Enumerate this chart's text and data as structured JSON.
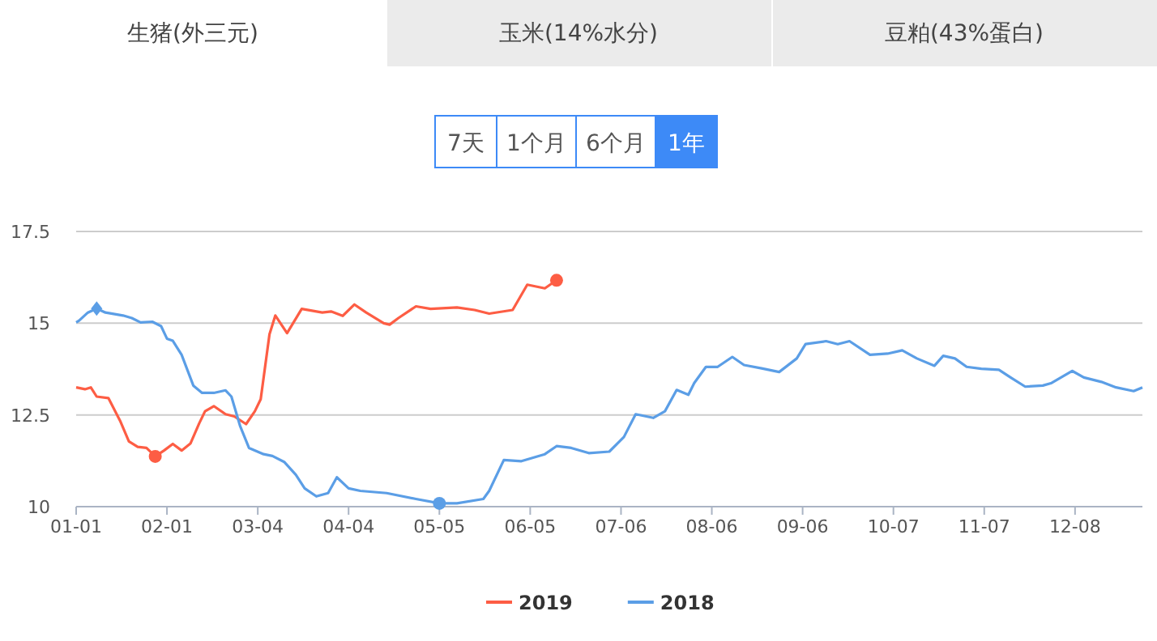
{
  "chart_data": {
    "type": "line",
    "xlim": [
      "--01-01",
      "--12-31"
    ],
    "ylim": [
      10,
      17.5
    ],
    "yticks": [
      10,
      12.5,
      15,
      17.5
    ],
    "xticks": [
      {
        "value": "--01-01",
        "label": "01-01"
      },
      {
        "value": "--02-01",
        "label": "02-01"
      },
      {
        "value": "--03-04",
        "label": "03-04"
      },
      {
        "value": "--04-04",
        "label": "04-04"
      },
      {
        "value": "--05-05",
        "label": "05-05"
      },
      {
        "value": "--06-05",
        "label": "06-05"
      },
      {
        "value": "--07-06",
        "label": "07-06"
      },
      {
        "value": "--08-06",
        "label": "08-06"
      },
      {
        "value": "--09-06",
        "label": "09-06"
      },
      {
        "value": "--10-07",
        "label": "10-07"
      },
      {
        "value": "--11-07",
        "label": "11-07"
      },
      {
        "value": "--12-08",
        "label": "12-08"
      }
    ],
    "grid": "y",
    "legend": "bottom",
    "annotations": [
      "生猪(外三元)",
      "玉米(14%水分)",
      "豆粕(43%蛋白)",
      "7天",
      "1个月",
      "6个月",
      "1年"
    ],
    "series": [
      {
        "name": "2019",
        "color": "#fd5d44",
        "x": [
          "--01-01",
          "--01-04",
          "--01-06",
          "--01-08",
          "--01-12",
          "--01-16",
          "--01-19",
          "--01-22",
          "--01-25",
          "--01-28",
          "--01-31",
          "--02-03",
          "--02-06",
          "--02-09",
          "--02-12",
          "--02-14",
          "--02-17",
          "--02-21",
          "--02-24",
          "--02-28",
          "--03-03",
          "--03-05",
          "--03-08",
          "--03-10",
          "--03-14",
          "--03-19",
          "--03-26",
          "--03-29",
          "--04-02",
          "--04-06",
          "--04-10",
          "--04-16",
          "--04-18",
          "--04-21",
          "--04-27",
          "--05-02",
          "--05-11",
          "--05-17",
          "--05-22",
          "--05-30",
          "--06-04",
          "--06-10",
          "--06-14"
        ],
        "values": [
          13.25,
          13.2,
          13.25,
          13.0,
          12.96,
          12.34,
          11.78,
          11.63,
          11.6,
          11.37,
          11.53,
          11.71,
          11.53,
          11.72,
          12.27,
          12.6,
          12.74,
          12.52,
          12.46,
          12.25,
          12.6,
          12.93,
          14.7,
          15.21,
          14.73,
          15.39,
          15.29,
          15.32,
          15.2,
          15.51,
          15.29,
          15.0,
          14.96,
          15.14,
          15.46,
          15.39,
          15.43,
          15.36,
          15.26,
          15.36,
          16.05,
          15.95,
          16.17
        ]
      },
      {
        "name": "2018",
        "color": "#5b9ee6",
        "x": [
          "--01-01",
          "--01-02",
          "--01-05",
          "--01-08",
          "--01-11",
          "--01-17",
          "--01-20",
          "--01-23",
          "--01-27",
          "--01-30",
          "--02-01",
          "--02-03",
          "--02-06",
          "--02-10",
          "--02-13",
          "--02-17",
          "--02-21",
          "--02-23",
          "--02-26",
          "--03-01",
          "--03-06",
          "--03-09",
          "--03-13",
          "--03-17",
          "--03-20",
          "--03-24",
          "--03-28",
          "--03-31",
          "--04-04",
          "--04-08",
          "--04-17",
          "--04-27",
          "--05-05",
          "--05-11",
          "--05-20",
          "--05-22",
          "--05-27",
          "--06-02",
          "--06-10",
          "--06-14",
          "--06-19",
          "--06-25",
          "--07-02",
          "--07-07",
          "--07-11",
          "--07-17",
          "--07-21",
          "--07-25",
          "--07-29",
          "--07-31",
          "--08-04",
          "--08-08",
          "--08-13",
          "--08-17",
          "--08-23",
          "--08-29",
          "--09-04",
          "--09-07",
          "--09-14",
          "--09-18",
          "--09-22",
          "--09-29",
          "--10-05",
          "--10-10",
          "--10-15",
          "--10-21",
          "--10-24",
          "--10-28",
          "--11-01",
          "--11-06",
          "--11-12",
          "--11-16",
          "--11-21",
          "--11-27",
          "--11-30",
          "--12-07",
          "--12-11",
          "--12-17",
          "--12-22",
          "--12-28",
          "--12-31"
        ],
        "values": [
          15.02,
          15.07,
          15.29,
          15.4,
          15.29,
          15.21,
          15.14,
          15.02,
          15.04,
          14.92,
          14.58,
          14.52,
          14.14,
          13.3,
          13.1,
          13.1,
          13.17,
          13.0,
          12.19,
          11.6,
          11.43,
          11.38,
          11.22,
          10.87,
          10.5,
          10.28,
          10.37,
          10.8,
          10.5,
          10.43,
          10.37,
          10.21,
          10.09,
          10.09,
          10.21,
          10.43,
          11.27,
          11.24,
          11.43,
          11.65,
          11.6,
          11.46,
          11.5,
          11.9,
          12.52,
          12.42,
          12.6,
          13.18,
          13.05,
          13.37,
          13.81,
          13.81,
          14.08,
          13.86,
          13.77,
          13.67,
          14.04,
          14.43,
          14.51,
          14.43,
          14.51,
          14.14,
          14.17,
          14.26,
          14.04,
          13.84,
          14.11,
          14.04,
          13.81,
          13.76,
          13.73,
          13.52,
          13.27,
          13.3,
          13.37,
          13.7,
          13.52,
          13.4,
          13.25,
          13.15,
          13.25
        ]
      },
      {
        "type": "scatter",
        "color": "#fd5d44",
        "marker": "circle",
        "x": [
          "--01-28",
          "--06-14"
        ],
        "values": [
          11.37,
          16.17
        ]
      },
      {
        "type": "scatter",
        "color": "#5b9ee6",
        "marker": "circle",
        "x": [
          "--05-05"
        ],
        "values": [
          10.09
        ]
      },
      {
        "type": "scatter",
        "color": "#5b9ee6",
        "marker": "diamond",
        "x": [
          "--01-08"
        ],
        "values": [
          15.4
        ]
      }
    ]
  }
}
